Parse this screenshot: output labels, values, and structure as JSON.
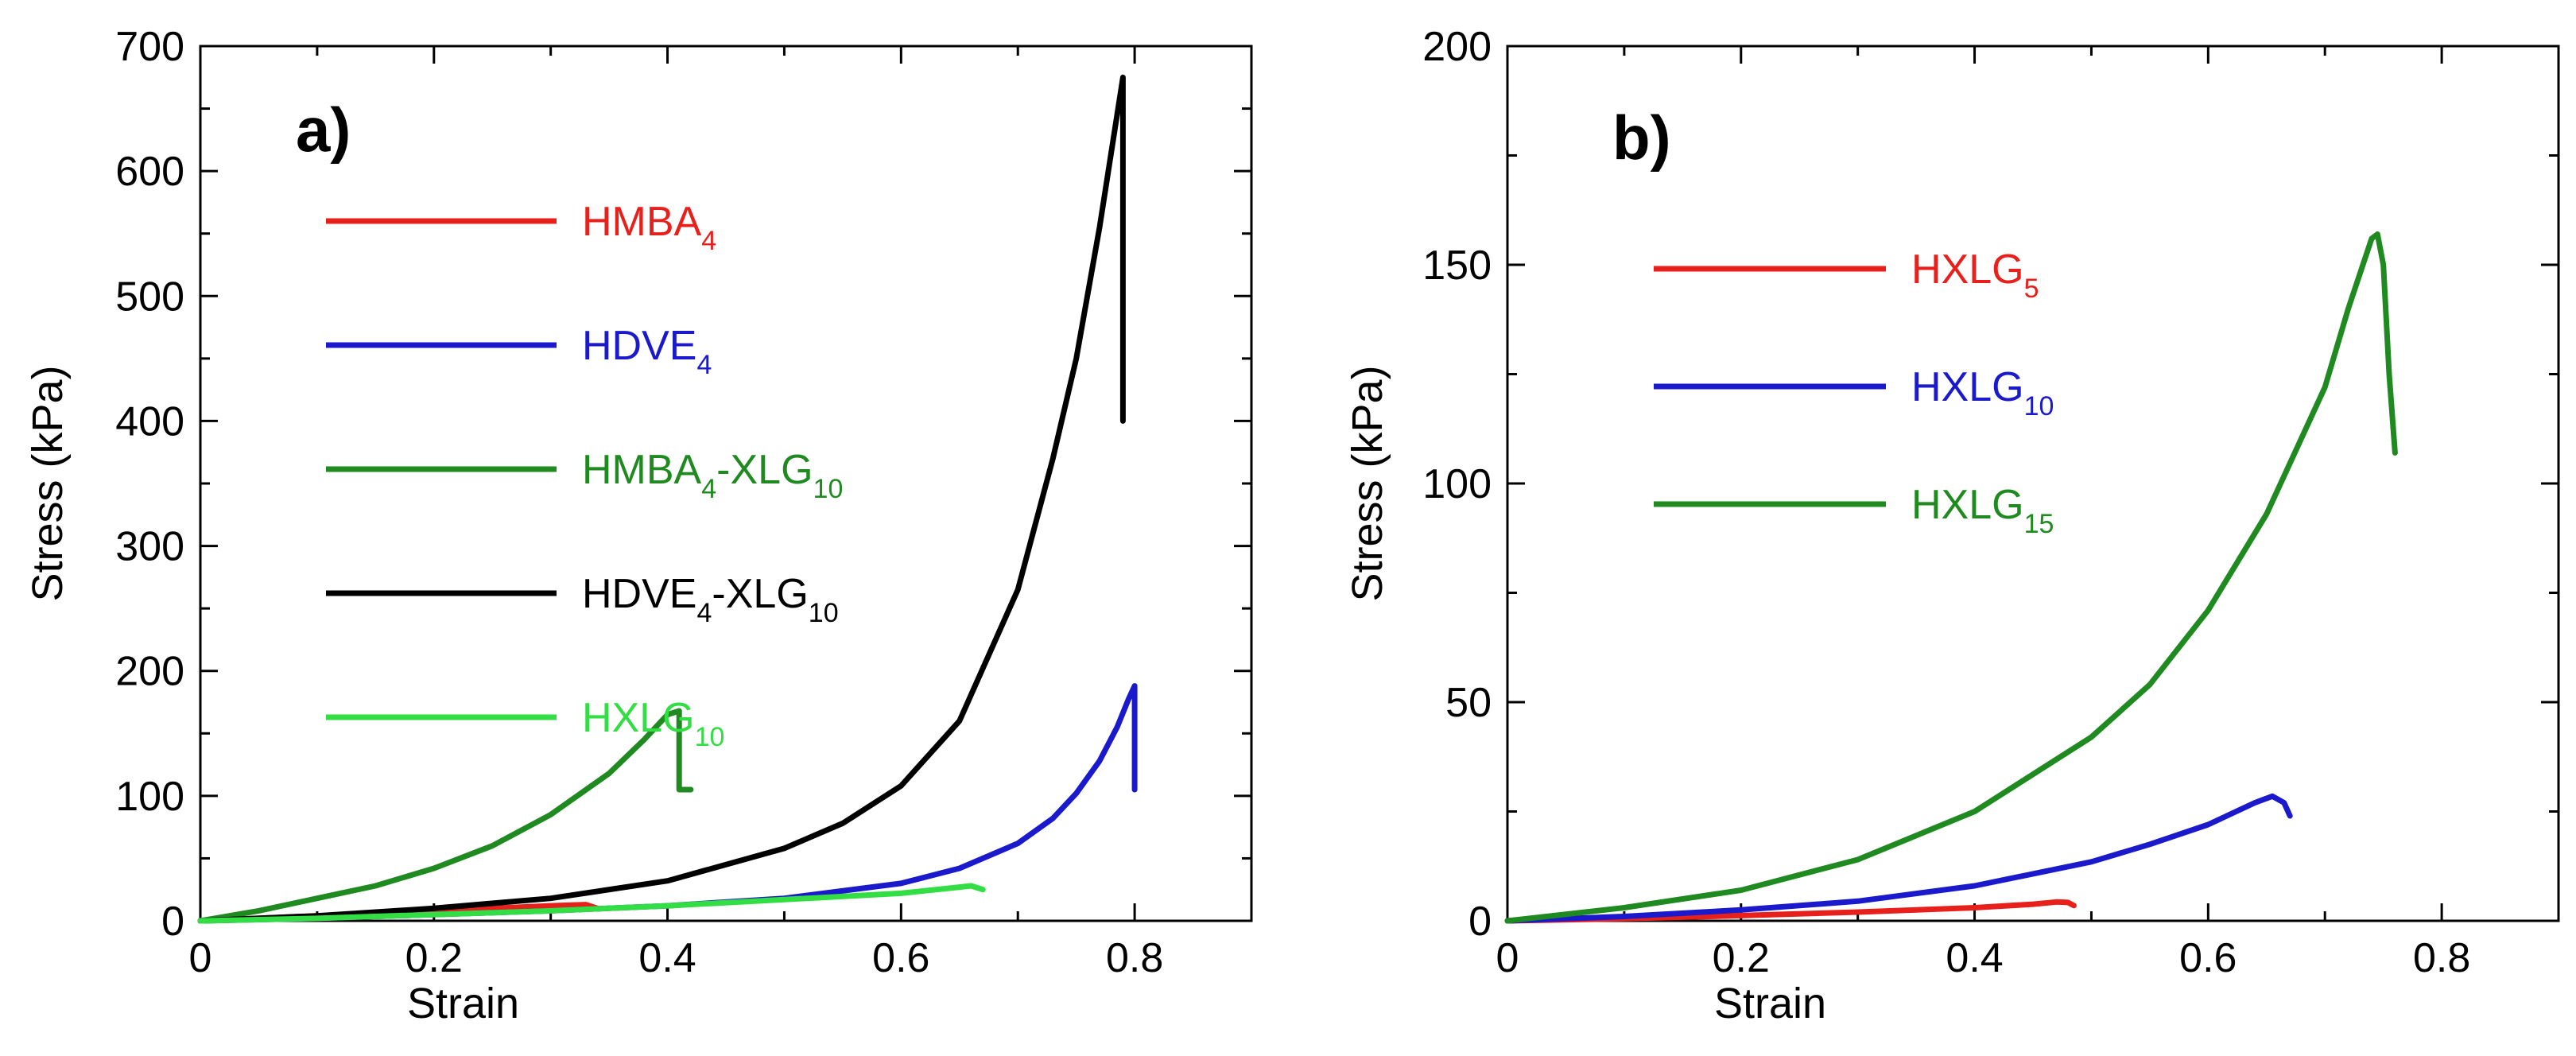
{
  "chart_data": [
    {
      "panel": "a)",
      "type": "line",
      "xlabel": "Strain",
      "ylabel": "Stress (kPa)",
      "xlim": [
        0,
        0.9
      ],
      "ylim": [
        0,
        700
      ],
      "xticks": [
        0,
        0.2,
        0.4,
        0.6,
        0.8
      ],
      "xtick_labels": [
        "0",
        "0.2",
        "0.4",
        "0.6",
        "0.8"
      ],
      "yticks": [
        0,
        100,
        200,
        300,
        400,
        500,
        600,
        700
      ],
      "ytick_labels": [
        "0",
        "100",
        "200",
        "300",
        "400",
        "500",
        "600",
        "700"
      ],
      "legend_position": "upper-left",
      "series": [
        {
          "name": "HMBA4",
          "label_main": "HMBA",
          "label_parts": [
            {
              "t": "HMBA",
              "sub": false
            },
            {
              "t": "4",
              "sub": true
            }
          ],
          "color": "#e8201c",
          "x": [
            0,
            0.05,
            0.1,
            0.15,
            0.2,
            0.25,
            0.3,
            0.33,
            0.34
          ],
          "y": [
            0,
            2,
            4,
            6,
            8,
            10,
            12,
            13,
            10
          ]
        },
        {
          "name": "HDVE4",
          "label_parts": [
            {
              "t": "HDVE",
              "sub": false
            },
            {
              "t": "4",
              "sub": true
            }
          ],
          "color": "#1a1acc",
          "x": [
            0,
            0.1,
            0.2,
            0.3,
            0.4,
            0.5,
            0.6,
            0.65,
            0.7,
            0.73,
            0.75,
            0.77,
            0.785,
            0.795,
            0.8,
            0.8
          ],
          "y": [
            0,
            2,
            5,
            8,
            12,
            18,
            30,
            42,
            62,
            82,
            102,
            128,
            155,
            178,
            188,
            105
          ]
        },
        {
          "name": "HMBA4-XLG10",
          "label_parts": [
            {
              "t": "HMBA",
              "sub": false
            },
            {
              "t": "4",
              "sub": true
            },
            {
              "t": "-XLG",
              "sub": false
            },
            {
              "t": "10",
              "sub": true
            }
          ],
          "color": "#1f8a1f",
          "x": [
            0,
            0.05,
            0.1,
            0.15,
            0.2,
            0.25,
            0.3,
            0.35,
            0.38,
            0.4,
            0.41,
            0.41,
            0.42
          ],
          "y": [
            0,
            8,
            18,
            28,
            42,
            60,
            85,
            118,
            145,
            165,
            168,
            105,
            105
          ]
        },
        {
          "name": "HDVE4-XLG10",
          "label_parts": [
            {
              "t": "HDVE",
              "sub": false
            },
            {
              "t": "4",
              "sub": true
            },
            {
              "t": "-XLG",
              "sub": false
            },
            {
              "t": "10",
              "sub": true
            }
          ],
          "color": "#000000",
          "x": [
            0,
            0.1,
            0.2,
            0.3,
            0.4,
            0.5,
            0.55,
            0.6,
            0.65,
            0.7,
            0.73,
            0.75,
            0.77,
            0.78,
            0.79,
            0.79
          ],
          "y": [
            0,
            4,
            10,
            18,
            32,
            58,
            78,
            108,
            160,
            265,
            370,
            450,
            555,
            615,
            675,
            400
          ]
        },
        {
          "name": "HXLG10",
          "label_parts": [
            {
              "t": "HXLG",
              "sub": false
            },
            {
              "t": "10",
              "sub": true
            }
          ],
          "color": "#33dd44",
          "x": [
            0,
            0.1,
            0.2,
            0.3,
            0.4,
            0.5,
            0.6,
            0.65,
            0.66,
            0.67
          ],
          "y": [
            0,
            2,
            5,
            8,
            12,
            17,
            22,
            27,
            28,
            25
          ]
        }
      ]
    },
    {
      "panel": "b)",
      "type": "line",
      "xlabel": "Strain",
      "ylabel": "Stress (kPa)",
      "xlim": [
        0,
        0.9
      ],
      "ylim": [
        0,
        200
      ],
      "xticks": [
        0,
        0.2,
        0.4,
        0.6,
        0.8
      ],
      "xtick_labels": [
        "0",
        "0.2",
        "0.4",
        "0.6",
        "0.8"
      ],
      "yticks": [
        0,
        50,
        100,
        150,
        200
      ],
      "ytick_labels": [
        "0",
        "50",
        "100",
        "150",
        "200"
      ],
      "legend_position": "upper-left",
      "series": [
        {
          "name": "HXLG5",
          "label_parts": [
            {
              "t": "HXLG",
              "sub": false
            },
            {
              "t": "5",
              "sub": true
            }
          ],
          "color": "#e8201c",
          "x": [
            0,
            0.1,
            0.2,
            0.3,
            0.4,
            0.45,
            0.47,
            0.48,
            0.485
          ],
          "y": [
            0,
            0.5,
            1.2,
            2.0,
            3.0,
            3.8,
            4.3,
            4.2,
            3.5
          ]
        },
        {
          "name": "HXLG10",
          "label_parts": [
            {
              "t": "HXLG",
              "sub": false
            },
            {
              "t": "10",
              "sub": true
            }
          ],
          "color": "#1a1acc",
          "x": [
            0,
            0.1,
            0.2,
            0.3,
            0.4,
            0.5,
            0.55,
            0.6,
            0.64,
            0.655,
            0.665,
            0.67
          ],
          "y": [
            0,
            1,
            2.5,
            4.5,
            8,
            13.5,
            17.5,
            22,
            27,
            28.5,
            27,
            24
          ]
        },
        {
          "name": "HXLG15",
          "label_parts": [
            {
              "t": "HXLG",
              "sub": false
            },
            {
              "t": "15",
              "sub": true
            }
          ],
          "color": "#1f8a1f",
          "x": [
            0,
            0.1,
            0.2,
            0.3,
            0.4,
            0.5,
            0.55,
            0.6,
            0.65,
            0.7,
            0.72,
            0.74,
            0.745,
            0.75,
            0.755,
            0.76
          ],
          "y": [
            0,
            3,
            7,
            14,
            25,
            42,
            54,
            71,
            93,
            122,
            140,
            156,
            157,
            150,
            125,
            107
          ]
        }
      ]
    }
  ]
}
